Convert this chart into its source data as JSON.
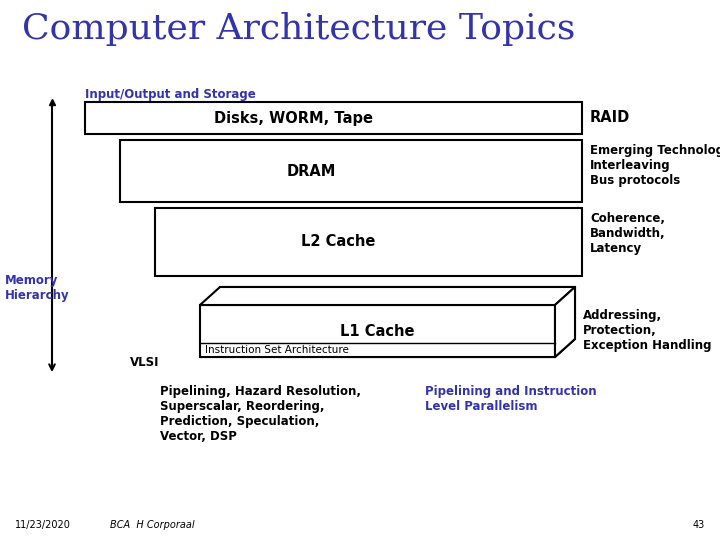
{
  "title": "Computer Architecture Topics",
  "title_color": "#3333aa",
  "title_fontsize": 26,
  "background_color": "#ffffff",
  "label_io": "Input/Output and Storage",
  "label_mem": "Memory\nHierarchy",
  "label_vlsi": "VLSI",
  "label_raid": "RAID",
  "label_emerging": "Emerging Technologies\nInterleaving\nBus protocols",
  "label_coherence": "Coherence,\nBandwidth,\nLatency",
  "label_addressing": "Addressing,\nProtection,\nException Handling",
  "label_pipelining": "Pipelining, Hazard Resolution,\nSuperscalar, Reordering,\nPrediction, Speculation,\nVector, DSP",
  "label_pipelining2": "Pipelining and Instruction\nLevel Parallelism",
  "label_date": "11/23/2020",
  "label_author": "BCA  H Corporaal",
  "label_page": "43",
  "box1_label": "Disks, WORM, Tape",
  "box2_label": "DRAM",
  "box3_label": "L2 Cache",
  "box4_label": "L1 Cache",
  "box4b_label": "Instruction Set Architecture",
  "blue_color": "#3333aa",
  "black_color": "#000000"
}
